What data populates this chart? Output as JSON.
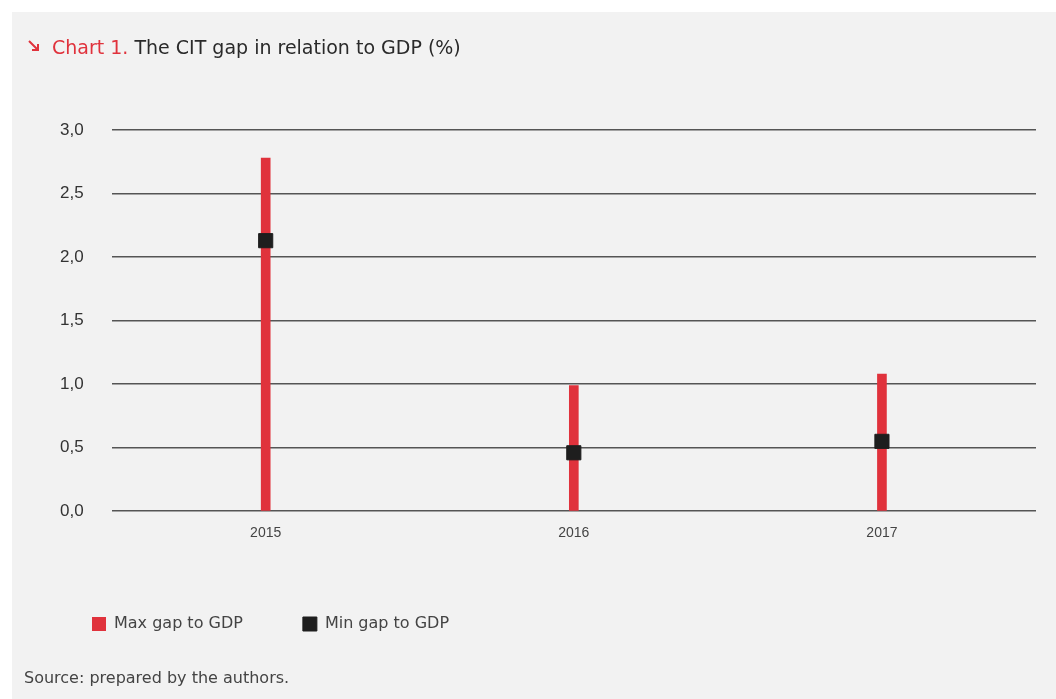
{
  "chart_data": {
    "type": "bar",
    "title": "Chart 1. The CIT gap in relation to GDP (%)",
    "categories": [
      "2015",
      "2016",
      "2017"
    ],
    "series": [
      {
        "name": "Max gap to GDP",
        "color": "#e0323c",
        "values": [
          2.78,
          0.99,
          1.08
        ]
      },
      {
        "name": "Min gap to GDP",
        "type": "scatter",
        "color": "#1e1e1e",
        "values": [
          2.13,
          0.46,
          0.55
        ]
      }
    ],
    "ylim": [
      0,
      3
    ],
    "yticks": [
      {
        "value": 0,
        "label": "0,0"
      },
      {
        "value": 0.5,
        "label": "0,5"
      },
      {
        "value": 1,
        "label": "1,0"
      },
      {
        "value": 1.5,
        "label": "1,5"
      },
      {
        "value": 2,
        "label": "2,0"
      },
      {
        "value": 2.5,
        "label": "2,5"
      },
      {
        "value": 3,
        "label": "3,0"
      }
    ],
    "grid": "y",
    "legend": "bottom",
    "marker": "square",
    "annotations": [
      "Source: prepared by the authors."
    ]
  }
}
